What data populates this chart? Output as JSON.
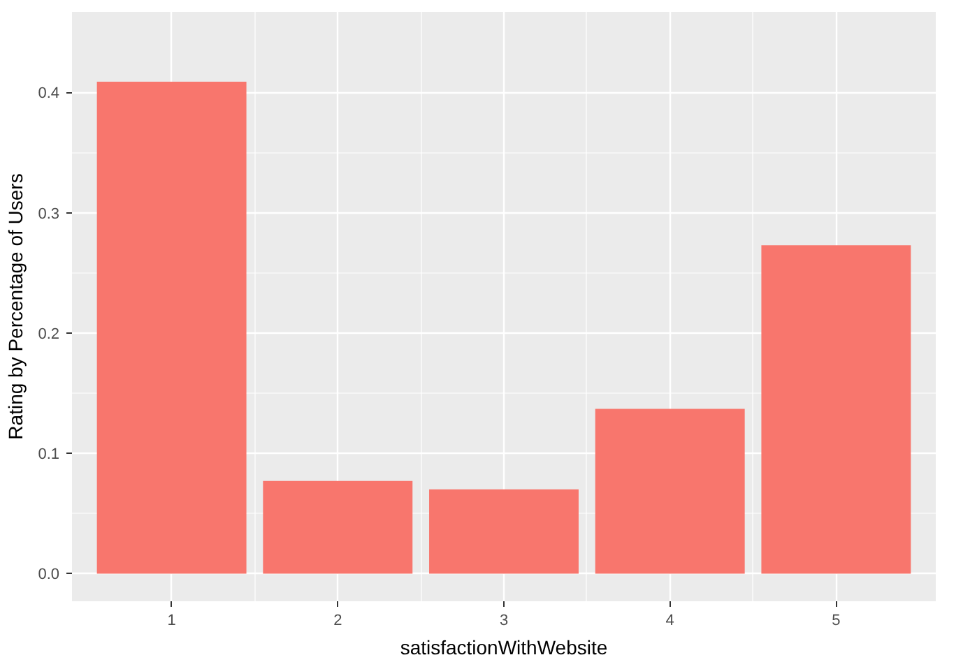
{
  "chart_data": {
    "type": "bar",
    "xlabel": "satisfactionWithWebsite",
    "ylabel": "Rating by Percentage of Users",
    "categories": [
      "1",
      "2",
      "3",
      "4",
      "5"
    ],
    "values": [
      0.409,
      0.077,
      0.07,
      0.137,
      0.273
    ],
    "color": "#f8766d",
    "ylim": [
      -0.023,
      0.467
    ],
    "yticks": [
      {
        "value": 0,
        "label": "0.0"
      },
      0.1,
      0.2,
      0.3,
      0.4
    ],
    "grid": true
  }
}
